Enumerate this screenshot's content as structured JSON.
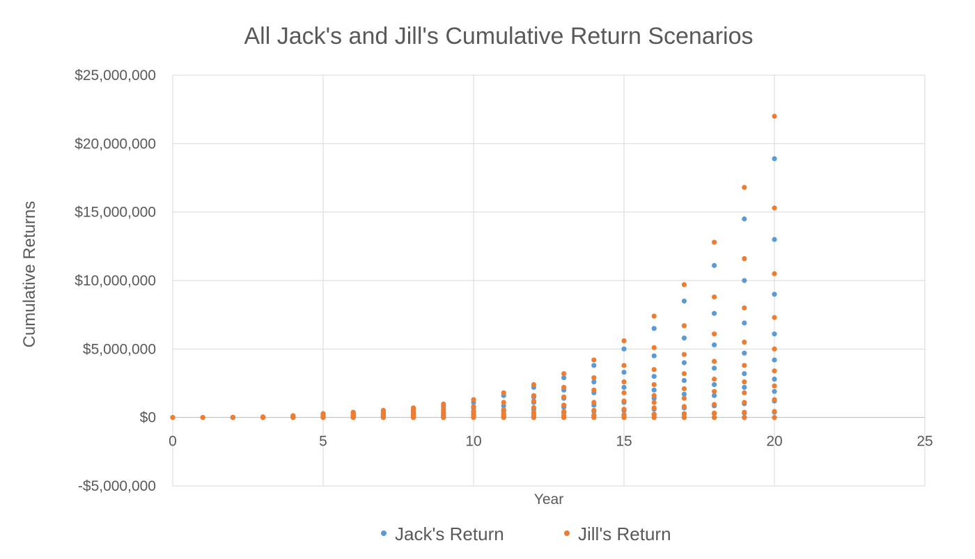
{
  "chart_data": {
    "type": "scatter",
    "title": "All Jack's and Jill's Cumulative Return Scenarios",
    "xlabel": "Year",
    "ylabel": "Cumulative Returns",
    "xlim": [
      0,
      25
    ],
    "ylim": [
      -5000000,
      25000000
    ],
    "x_ticks": [
      0,
      5,
      10,
      15,
      20,
      25
    ],
    "x_tick_labels": [
      "0",
      "5",
      "10",
      "15",
      "20",
      "25"
    ],
    "y_ticks": [
      -5000000,
      0,
      5000000,
      10000000,
      15000000,
      20000000,
      25000000
    ],
    "y_tick_labels": [
      "-$5,000,000",
      "$0",
      "$5,000,000",
      "$10,000,000",
      "$15,000,000",
      "$20,000,000",
      "$25,000,000"
    ],
    "grid": true,
    "legend_position": "bottom",
    "series": [
      {
        "name": "Jack's Return",
        "color": "#5B9BD5",
        "points": [
          [
            0,
            0
          ],
          [
            1,
            0
          ],
          [
            2,
            0
          ],
          [
            2,
            10000
          ],
          [
            3,
            0
          ],
          [
            3,
            20000
          ],
          [
            3,
            40000
          ],
          [
            4,
            0
          ],
          [
            4,
            30000
          ],
          [
            4,
            70000
          ],
          [
            4,
            120000
          ],
          [
            5,
            0
          ],
          [
            5,
            40000
          ],
          [
            5,
            100000
          ],
          [
            5,
            180000
          ],
          [
            5,
            250000
          ],
          [
            6,
            0
          ],
          [
            6,
            30000
          ],
          [
            6,
            80000
          ],
          [
            6,
            150000
          ],
          [
            6,
            250000
          ],
          [
            6,
            340000
          ],
          [
            7,
            0
          ],
          [
            7,
            40000
          ],
          [
            7,
            100000
          ],
          [
            7,
            200000
          ],
          [
            7,
            330000
          ],
          [
            7,
            460000
          ],
          [
            8,
            0
          ],
          [
            8,
            50000
          ],
          [
            8,
            130000
          ],
          [
            8,
            260000
          ],
          [
            8,
            420000
          ],
          [
            8,
            620000
          ],
          [
            9,
            0
          ],
          [
            9,
            60000
          ],
          [
            9,
            160000
          ],
          [
            9,
            320000
          ],
          [
            9,
            540000
          ],
          [
            9,
            820000
          ],
          [
            10,
            0
          ],
          [
            10,
            70000
          ],
          [
            10,
            200000
          ],
          [
            10,
            400000
          ],
          [
            10,
            680000
          ],
          [
            10,
            1100000
          ],
          [
            11,
            0
          ],
          [
            11,
            80000
          ],
          [
            11,
            240000
          ],
          [
            11,
            480000
          ],
          [
            11,
            850000
          ],
          [
            11,
            1600000
          ],
          [
            12,
            0
          ],
          [
            12,
            100000
          ],
          [
            12,
            300000
          ],
          [
            12,
            600000
          ],
          [
            12,
            1100000
          ],
          [
            12,
            1500000
          ],
          [
            12,
            2200000
          ],
          [
            13,
            0
          ],
          [
            13,
            120000
          ],
          [
            13,
            360000
          ],
          [
            13,
            750000
          ],
          [
            13,
            1400000
          ],
          [
            13,
            2000000
          ],
          [
            13,
            2900000
          ],
          [
            14,
            0
          ],
          [
            14,
            150000
          ],
          [
            14,
            440000
          ],
          [
            14,
            900000
          ],
          [
            14,
            1800000
          ],
          [
            14,
            2600000
          ],
          [
            14,
            3800000
          ],
          [
            15,
            0
          ],
          [
            15,
            170000
          ],
          [
            15,
            500000
          ],
          [
            15,
            1100000
          ],
          [
            15,
            2200000
          ],
          [
            15,
            3300000
          ],
          [
            15,
            5000000
          ],
          [
            16,
            0
          ],
          [
            16,
            200000
          ],
          [
            16,
            600000
          ],
          [
            16,
            1400000
          ],
          [
            16,
            2000000
          ],
          [
            16,
            3000000
          ],
          [
            16,
            4500000
          ],
          [
            16,
            6500000
          ],
          [
            17,
            0
          ],
          [
            17,
            240000
          ],
          [
            17,
            700000
          ],
          [
            17,
            1700000
          ],
          [
            17,
            2700000
          ],
          [
            17,
            4000000
          ],
          [
            17,
            5800000
          ],
          [
            17,
            8500000
          ],
          [
            18,
            0
          ],
          [
            18,
            280000
          ],
          [
            18,
            850000
          ],
          [
            18,
            1600000
          ],
          [
            18,
            2400000
          ],
          [
            18,
            3600000
          ],
          [
            18,
            5300000
          ],
          [
            18,
            7600000
          ],
          [
            18,
            11100000
          ],
          [
            19,
            0
          ],
          [
            19,
            320000
          ],
          [
            19,
            1000000
          ],
          [
            19,
            2200000
          ],
          [
            19,
            3200000
          ],
          [
            19,
            4700000
          ],
          [
            19,
            6900000
          ],
          [
            19,
            10000000
          ],
          [
            19,
            14500000
          ],
          [
            20,
            0
          ],
          [
            20,
            380000
          ],
          [
            20,
            1200000
          ],
          [
            20,
            1900000
          ],
          [
            20,
            2800000
          ],
          [
            20,
            4200000
          ],
          [
            20,
            6100000
          ],
          [
            20,
            9000000
          ],
          [
            20,
            13000000
          ],
          [
            20,
            18900000
          ]
        ]
      },
      {
        "name": "Jill's Return",
        "color": "#ED7D31",
        "points": [
          [
            0,
            0
          ],
          [
            1,
            0
          ],
          [
            2,
            0
          ],
          [
            2,
            10000
          ],
          [
            3,
            0
          ],
          [
            3,
            20000
          ],
          [
            3,
            40000
          ],
          [
            4,
            0
          ],
          [
            4,
            30000
          ],
          [
            4,
            80000
          ],
          [
            4,
            130000
          ],
          [
            5,
            0
          ],
          [
            5,
            40000
          ],
          [
            5,
            110000
          ],
          [
            5,
            200000
          ],
          [
            5,
            280000
          ],
          [
            6,
            0
          ],
          [
            6,
            40000
          ],
          [
            6,
            100000
          ],
          [
            6,
            180000
          ],
          [
            6,
            280000
          ],
          [
            6,
            380000
          ],
          [
            7,
            0
          ],
          [
            7,
            50000
          ],
          [
            7,
            120000
          ],
          [
            7,
            230000
          ],
          [
            7,
            370000
          ],
          [
            7,
            520000
          ],
          [
            8,
            0
          ],
          [
            8,
            60000
          ],
          [
            8,
            150000
          ],
          [
            8,
            300000
          ],
          [
            8,
            480000
          ],
          [
            8,
            700000
          ],
          [
            9,
            0
          ],
          [
            9,
            70000
          ],
          [
            9,
            190000
          ],
          [
            9,
            380000
          ],
          [
            9,
            640000
          ],
          [
            9,
            980000
          ],
          [
            10,
            0
          ],
          [
            10,
            80000
          ],
          [
            10,
            230000
          ],
          [
            10,
            470000
          ],
          [
            10,
            800000
          ],
          [
            10,
            1300000
          ],
          [
            11,
            0
          ],
          [
            11,
            100000
          ],
          [
            11,
            290000
          ],
          [
            11,
            580000
          ],
          [
            11,
            1100000
          ],
          [
            11,
            1800000
          ],
          [
            12,
            0
          ],
          [
            12,
            120000
          ],
          [
            12,
            360000
          ],
          [
            12,
            720000
          ],
          [
            12,
            1200000
          ],
          [
            12,
            1600000
          ],
          [
            12,
            2400000
          ],
          [
            13,
            0
          ],
          [
            13,
            140000
          ],
          [
            13,
            430000
          ],
          [
            13,
            900000
          ],
          [
            13,
            1500000
          ],
          [
            13,
            2200000
          ],
          [
            13,
            3200000
          ],
          [
            14,
            0
          ],
          [
            14,
            170000
          ],
          [
            14,
            520000
          ],
          [
            14,
            1100000
          ],
          [
            14,
            2000000
          ],
          [
            14,
            2900000
          ],
          [
            14,
            4200000
          ],
          [
            15,
            0
          ],
          [
            15,
            200000
          ],
          [
            15,
            600000
          ],
          [
            15,
            1200000
          ],
          [
            15,
            1800000
          ],
          [
            15,
            2600000
          ],
          [
            15,
            3800000
          ],
          [
            15,
            5600000
          ],
          [
            16,
            0
          ],
          [
            16,
            240000
          ],
          [
            16,
            700000
          ],
          [
            16,
            1100000
          ],
          [
            16,
            1600000
          ],
          [
            16,
            2400000
          ],
          [
            16,
            3500000
          ],
          [
            16,
            5100000
          ],
          [
            16,
            7400000
          ],
          [
            17,
            0
          ],
          [
            17,
            280000
          ],
          [
            17,
            800000
          ],
          [
            17,
            1400000
          ],
          [
            17,
            2100000
          ],
          [
            17,
            3200000
          ],
          [
            17,
            4600000
          ],
          [
            17,
            6700000
          ],
          [
            17,
            9700000
          ],
          [
            18,
            0
          ],
          [
            18,
            320000
          ],
          [
            18,
            950000
          ],
          [
            18,
            1900000
          ],
          [
            18,
            2800000
          ],
          [
            18,
            4100000
          ],
          [
            18,
            6100000
          ],
          [
            18,
            8800000
          ],
          [
            18,
            12800000
          ],
          [
            19,
            0
          ],
          [
            19,
            380000
          ],
          [
            19,
            1100000
          ],
          [
            19,
            1800000
          ],
          [
            19,
            2600000
          ],
          [
            19,
            3800000
          ],
          [
            19,
            5500000
          ],
          [
            19,
            8000000
          ],
          [
            19,
            11600000
          ],
          [
            19,
            16800000
          ],
          [
            20,
            0
          ],
          [
            20,
            440000
          ],
          [
            20,
            1300000
          ],
          [
            20,
            2300000
          ],
          [
            20,
            3400000
          ],
          [
            20,
            5000000
          ],
          [
            20,
            7300000
          ],
          [
            20,
            10500000
          ],
          [
            20,
            15300000
          ],
          [
            20,
            22000000
          ]
        ]
      }
    ]
  }
}
